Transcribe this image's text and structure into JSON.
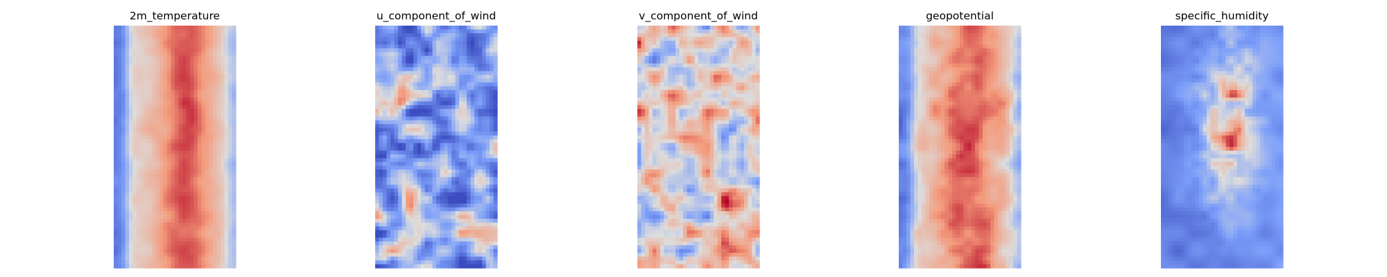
{
  "figure": {
    "layout": "1x5 grid of heatmap panels",
    "colormap": "coolwarm",
    "colormap_low": "#3b4cc0",
    "colormap_mid": "#dddddd",
    "colormap_high": "#b40426",
    "axes_visible": false,
    "colorbar": false
  },
  "chart_data": [
    {
      "type": "heatmap",
      "title": "2m_temperature",
      "grid": [
        32,
        64
      ],
      "pattern": "band",
      "values_normalized": "low (blue) strip along left edge, high (red) broad central band peaking near middle, lighter red toward right edge",
      "vmin_color": "#3b4cc0",
      "vmax_color": "#b40426"
    },
    {
      "type": "heatmap",
      "title": "u_component_of_wind",
      "grid": [
        32,
        64
      ],
      "pattern": "noise",
      "values_normalized": "mostly near-zero to negative (light blue) with scattered red streaks; strongest red near left-center, low values near middle height",
      "vmin_color": "#3b4cc0",
      "vmax_color": "#b40426"
    },
    {
      "type": "heatmap",
      "title": "v_component_of_wind",
      "grid": [
        32,
        64
      ],
      "pattern": "noise",
      "values_normalized": "mixed small-scale positive and negative cells (red/blue eddies) throughout, near-neutral background",
      "vmin_color": "#3b4cc0",
      "vmax_color": "#b40426"
    },
    {
      "type": "heatmap",
      "title": "geopotential",
      "grid": [
        32,
        64
      ],
      "pattern": "band",
      "values_normalized": "blue along left edge, strong red central band with dark red spots, pale near right edge",
      "vmin_color": "#3b4cc0",
      "vmax_color": "#b40426"
    },
    {
      "type": "heatmap",
      "title": "specific_humidity",
      "grid": [
        32,
        64
      ],
      "pattern": "humidity",
      "values_normalized": "mostly blue (low) with a central region of light red blobs and dark red spots",
      "vmin_color": "#3b4cc0",
      "vmax_color": "#b40426"
    }
  ]
}
